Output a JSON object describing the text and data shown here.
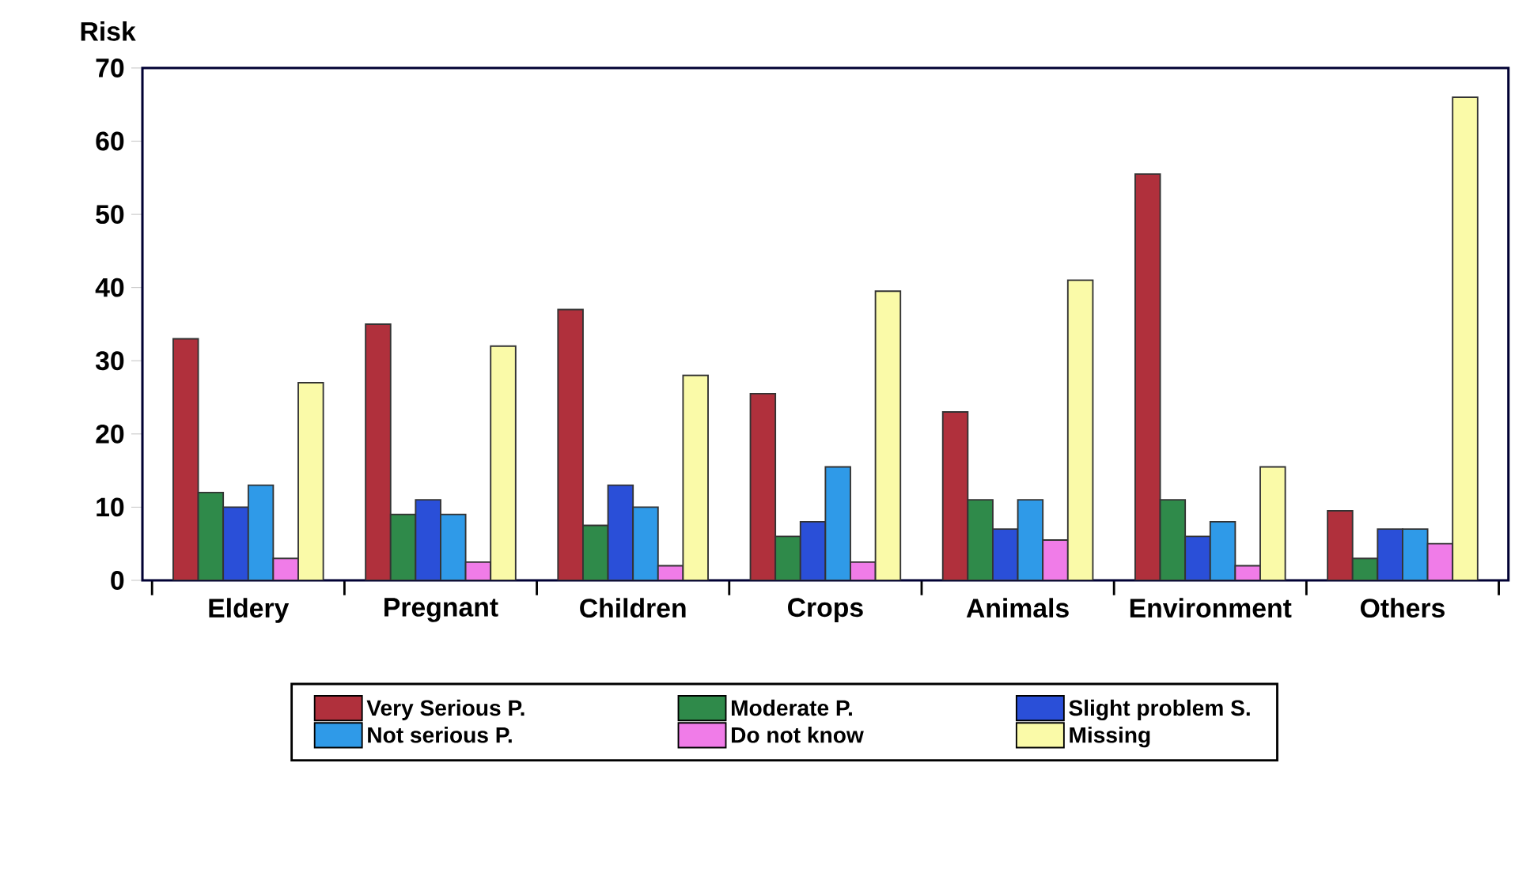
{
  "chart_data": {
    "type": "bar",
    "ylabel": "Risk",
    "categories": [
      "Eldery",
      "Pregnant",
      "Children",
      "Crops",
      "Animals",
      "Environment",
      "Others"
    ],
    "series": [
      {
        "name": "Very Serious P.",
        "color": "#b0303c",
        "values": [
          33,
          35,
          37,
          25.5,
          23,
          55.5,
          9.5
        ]
      },
      {
        "name": "Moderate P.",
        "color": "#2f8a4a",
        "values": [
          12,
          9,
          7.5,
          6,
          11,
          11,
          3
        ]
      },
      {
        "name": "Slight problem S.",
        "color": "#2a4fd8",
        "values": [
          10,
          11,
          13,
          8,
          7,
          6,
          7
        ]
      },
      {
        "name": "Not serious P.",
        "color": "#2f9ae8",
        "values": [
          13,
          9,
          10,
          15.5,
          11,
          8,
          7
        ]
      },
      {
        "name": "Do not know",
        "color": "#f07ce8",
        "values": [
          3,
          2.5,
          2,
          2.5,
          5.5,
          2,
          5
        ]
      },
      {
        "name": "Missing",
        "color": "#fafaa8",
        "values": [
          27,
          32,
          28,
          39.5,
          41,
          15.5,
          66
        ]
      }
    ],
    "ylim": [
      0,
      70
    ],
    "yticks": [
      0,
      10,
      20,
      30,
      40,
      50,
      60,
      70
    ],
    "legend": "bottom",
    "grid": false
  }
}
